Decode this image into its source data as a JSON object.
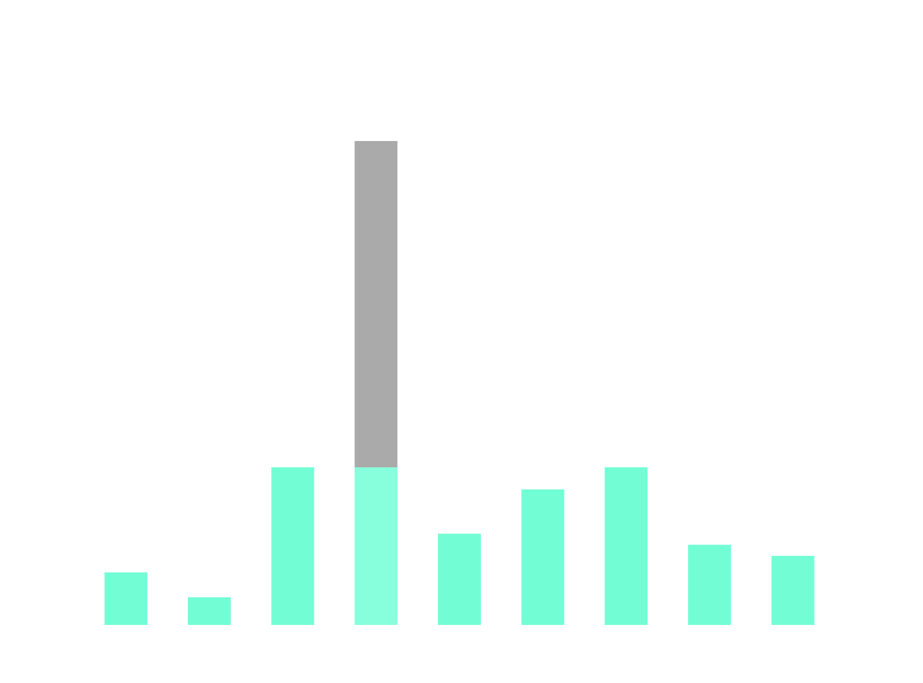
{
  "chart_data": {
    "type": "bar",
    "stacked": true,
    "grid": false,
    "axes_visible": false,
    "categories": [
      "",
      "",
      "",
      "",
      "",
      "",
      "",
      "",
      ""
    ],
    "series": [
      {
        "color": "#73fdd5",
        "values": [
          19,
          10,
          57,
          57,
          33,
          49,
          57,
          29,
          25
        ]
      },
      {
        "color": "#aaaaaa",
        "values": [
          0,
          0,
          0,
          118,
          0,
          0,
          0,
          0,
          0
        ]
      }
    ],
    "highlight": {
      "index": 3,
      "color": "#88ffdc"
    },
    "ylim": [
      0,
      175
    ]
  }
}
